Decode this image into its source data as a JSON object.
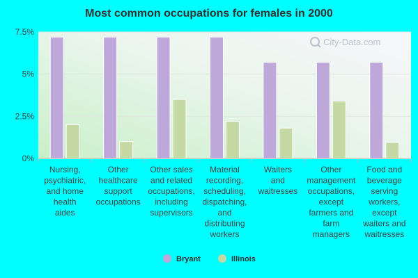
{
  "chart_data": {
    "type": "bar",
    "title": "Most common occupations for females in 2000",
    "xlabel": "",
    "ylabel": "",
    "ylim": [
      0,
      7.5
    ],
    "yticks": [
      {
        "value": 0,
        "label": "0%"
      },
      {
        "value": 2.5,
        "label": "2.5%"
      },
      {
        "value": 5,
        "label": "5%"
      },
      {
        "value": 7.5,
        "label": "7.5%"
      }
    ],
    "categories": [
      "Nursing, psychiatric, and home health aides",
      "Other healthcare support occupations",
      "Other sales and related occupations, including supervisors",
      "Material recording, scheduling, dispatching, and distributing workers",
      "Waiters and waitresses",
      "Other management occupations, except farmers and farm managers",
      "Food and beverage serving workers, except waiters and waitresses"
    ],
    "category_lines": [
      [
        "Nursing,",
        "psychiatric,",
        "and home",
        "health",
        "aides"
      ],
      [
        "Other",
        "healthcare",
        "support",
        "occupations"
      ],
      [
        "Other sales",
        "and related",
        "occupations,",
        "including",
        "supervisors"
      ],
      [
        "Material",
        "recording,",
        "scheduling,",
        "dispatching,",
        "and",
        "distributing",
        "workers"
      ],
      [
        "Waiters",
        "and",
        "waitresses"
      ],
      [
        "Other",
        "management",
        "occupations,",
        "except",
        "farmers and",
        "farm",
        "managers"
      ],
      [
        "Food and",
        "beverage",
        "serving",
        "workers,",
        "except",
        "waiters and",
        "waitresses"
      ]
    ],
    "series": [
      {
        "name": "Bryant",
        "color": "#bea8da",
        "values": [
          7.2,
          7.2,
          7.2,
          7.2,
          5.7,
          5.7,
          5.7
        ]
      },
      {
        "name": "Illinois",
        "color": "#c5d9a5",
        "values": [
          2.0,
          1.0,
          3.5,
          2.2,
          1.8,
          3.4,
          0.95
        ]
      }
    ],
    "grid": true,
    "legend": "bottom-center"
  },
  "watermark": "City-Data.com"
}
